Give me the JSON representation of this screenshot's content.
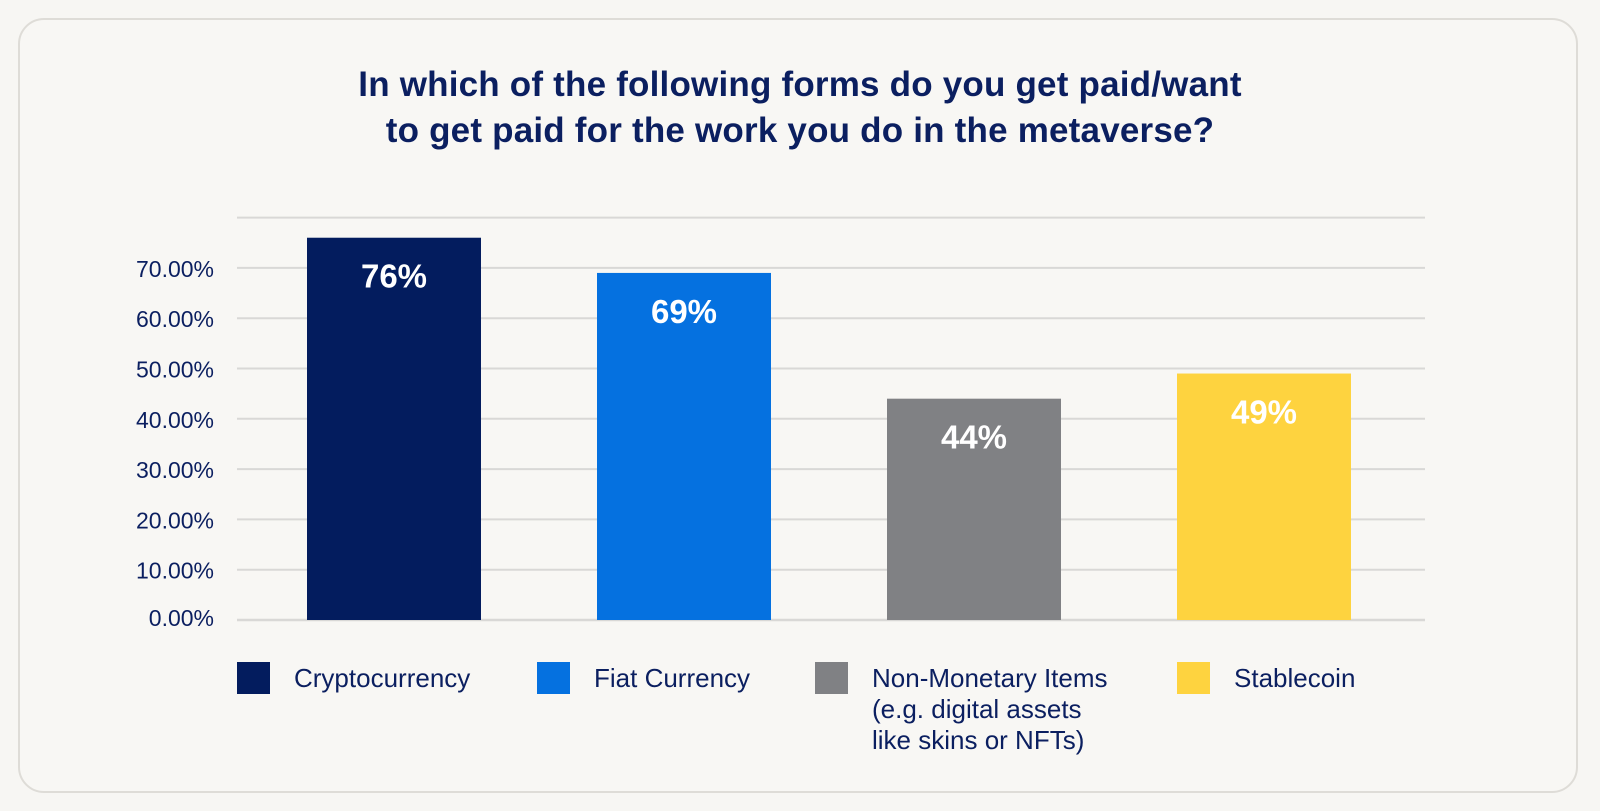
{
  "title": "In which of the following forms do you get paid/want\nto get paid for the work you do in the metaverse?",
  "chart_data": {
    "type": "bar",
    "title": "In which of the following forms do you get paid/want\nto get paid for the work you do in the metaverse?",
    "categories": [
      "Cryptocurrency",
      "Fiat Currency",
      "Non-Monetary Items\n(e.g. digital assets\nlike skins or NFTs)",
      "Stablecoin"
    ],
    "values": [
      76,
      69,
      44,
      49
    ],
    "data_labels": [
      "76%",
      "69%",
      "44%",
      "49%"
    ],
    "colors": [
      "#031c5e",
      "#0571e0",
      "#808184",
      "#fed33f"
    ],
    "yticks": [
      "0.00%",
      "10.00%",
      "20.00%",
      "30.00%",
      "40.00%",
      "50.00%",
      "60.00%",
      "70.00%"
    ],
    "ylim": [
      0,
      80
    ],
    "grid": true,
    "legend_position": "bottom",
    "xlabel": "",
    "ylabel": ""
  }
}
